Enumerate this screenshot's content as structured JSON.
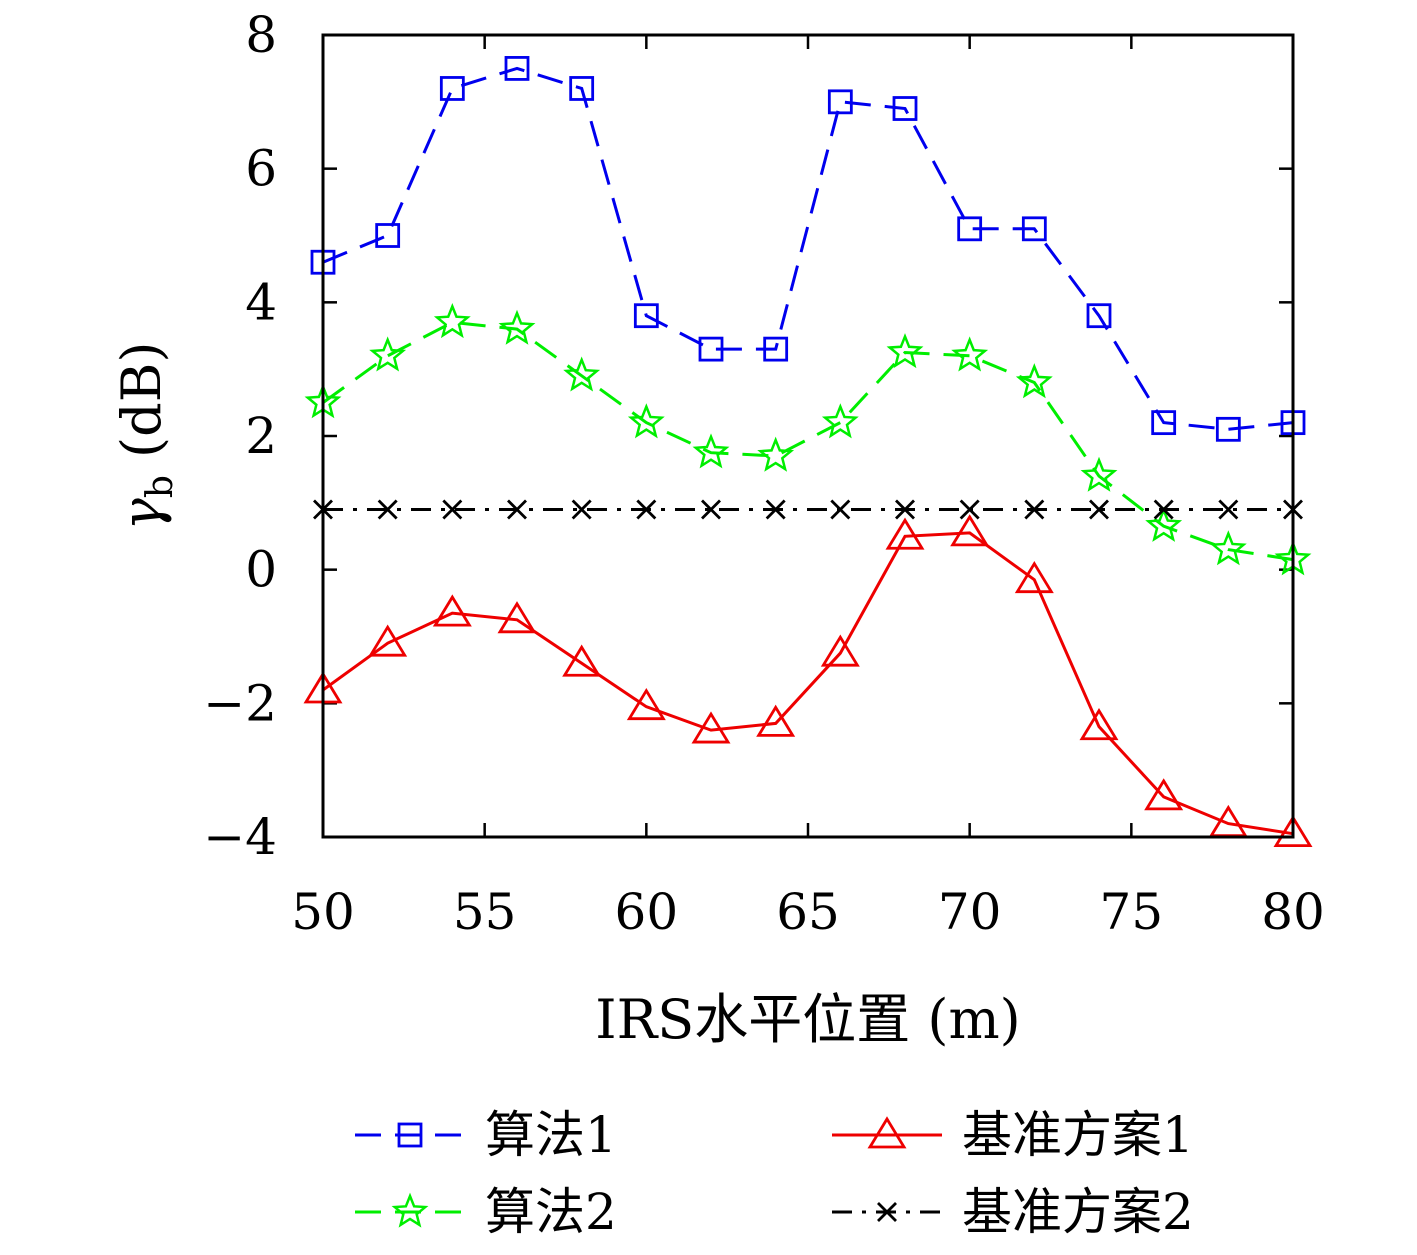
{
  "chart_data": {
    "type": "line",
    "xlabel": "IRS水平位置 (m)",
    "ylabel": "γ_b (dB)",
    "ylabel_main": "γ",
    "ylabel_sub": "b",
    "ylabel_unit": " (dB)",
    "xlim": [
      50,
      80
    ],
    "ylim": [
      -4,
      8
    ],
    "xticks": [
      50,
      55,
      60,
      65,
      70,
      75,
      80
    ],
    "yticks": [
      -4,
      -2,
      0,
      2,
      4,
      6,
      8
    ],
    "ytick_labels": [
      "−4",
      "−2",
      "0",
      "2",
      "4",
      "6",
      "8"
    ],
    "grid": false,
    "legend_position": "bottom",
    "x": [
      50,
      52,
      54,
      56,
      58,
      60,
      62,
      64,
      66,
      68,
      70,
      72,
      74,
      76,
      78,
      80
    ],
    "series": [
      {
        "name": "算法1",
        "color": "#0000ee",
        "marker": "square",
        "line": "dashed",
        "values": [
          4.6,
          5.0,
          7.2,
          7.5,
          7.2,
          3.8,
          3.3,
          3.3,
          7.0,
          6.9,
          5.1,
          5.1,
          3.8,
          2.2,
          2.1,
          2.2
        ]
      },
      {
        "name": "算法2",
        "color": "#00ee00",
        "marker": "star",
        "line": "dashed",
        "values": [
          2.5,
          3.2,
          3.7,
          3.6,
          2.9,
          2.2,
          1.75,
          1.7,
          2.2,
          3.25,
          3.2,
          2.8,
          1.4,
          0.65,
          0.3,
          0.15
        ]
      },
      {
        "name": "基准方案1",
        "color": "#ee0000",
        "marker": "triangle",
        "line": "solid",
        "values": [
          -1.8,
          -1.1,
          -0.65,
          -0.75,
          -1.4,
          -2.05,
          -2.4,
          -2.3,
          -1.25,
          0.5,
          0.55,
          -0.15,
          -2.35,
          -3.4,
          -3.8,
          -3.95
        ]
      },
      {
        "name": "基准方案2",
        "color": "#000000",
        "marker": "x",
        "line": "dashdot",
        "values": [
          0.9,
          0.9,
          0.9,
          0.9,
          0.9,
          0.9,
          0.9,
          0.9,
          0.9,
          0.9,
          0.9,
          0.9,
          0.9,
          0.9,
          0.9,
          0.9
        ]
      }
    ]
  }
}
